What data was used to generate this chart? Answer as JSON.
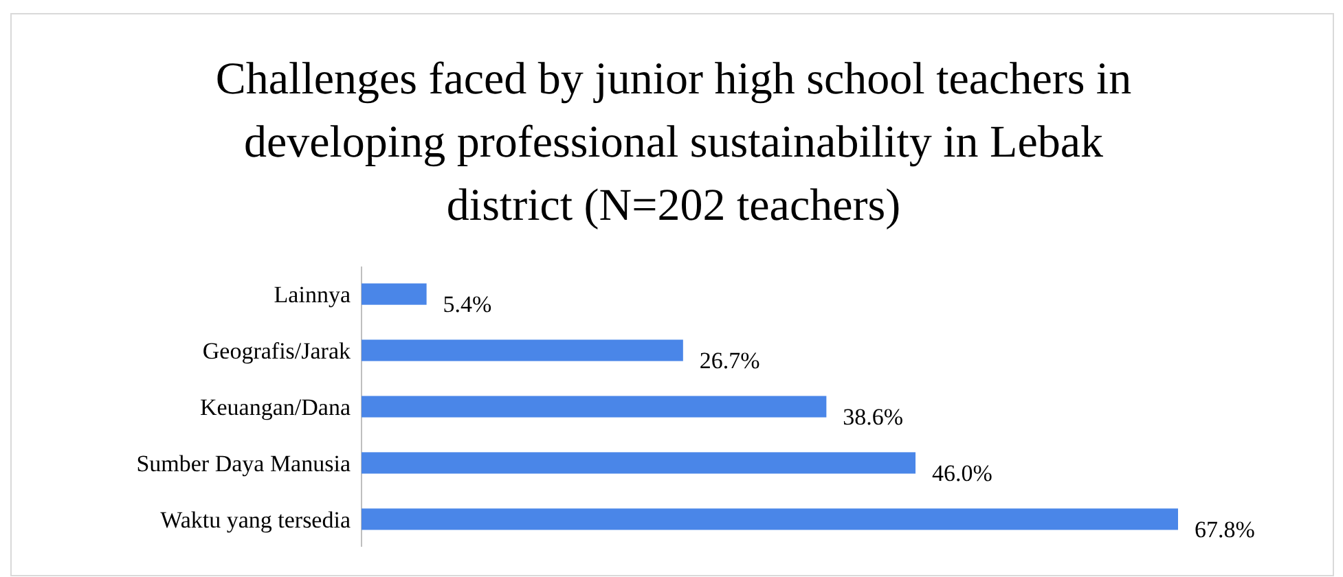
{
  "chart_data": {
    "type": "bar",
    "orientation": "horizontal",
    "title": "Challenges faced by junior high school teachers in developing professional sustainability in Lebak district (N=202 teachers)",
    "categories": [
      "Lainnya",
      "Geografis/Jarak",
      "Keuangan/Dana",
      "Sumber Daya Manusia",
      "Waktu yang tersedia"
    ],
    "values": [
      5.4,
      26.7,
      38.6,
      46.0,
      67.8
    ],
    "value_labels": [
      "5.4%",
      "26.7%",
      "38.6%",
      "46.0%",
      "67.8%"
    ],
    "color": "#4a86e8"
  }
}
